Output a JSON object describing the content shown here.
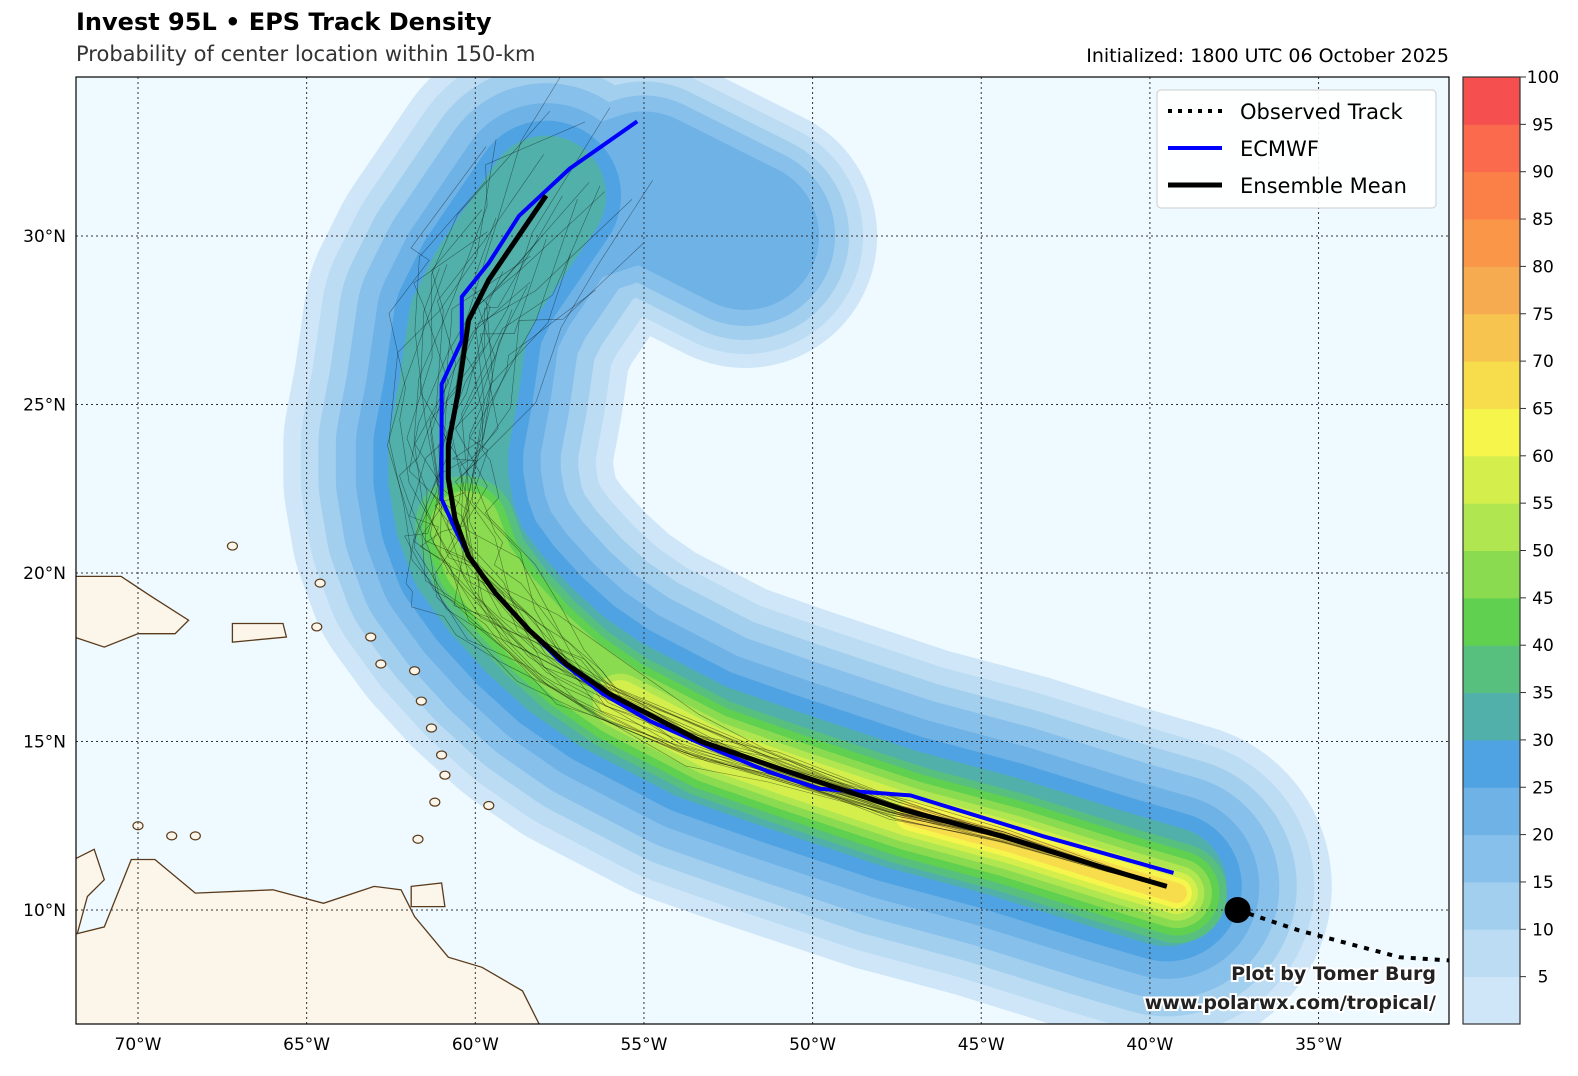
{
  "header": {
    "title": "Invest 95L • EPS Track Density",
    "subtitle": "Probability of center location within 150-km",
    "initialized": "Initialized: 1800 UTC 06 October 2025"
  },
  "legend": {
    "observed": "Observed Track",
    "ecmwf": "ECMWF",
    "mean": "Ensemble Mean"
  },
  "credit": {
    "line1": "Plot by Tomer Burg",
    "line2": "www.polarwx.com/tropical/"
  },
  "colors": {
    "ocean": "#eefaff",
    "land": "#fbf5ea",
    "coast": "#5a3a1a",
    "ecmwf": "#0000ff",
    "mean": "#000000"
  },
  "chart_data": {
    "type": "heatmap",
    "x_ticks": [
      {
        "lon": -70,
        "label": "70°W"
      },
      {
        "lon": -65,
        "label": "65°W"
      },
      {
        "lon": -60,
        "label": "60°W"
      },
      {
        "lon": -55,
        "label": "55°W"
      },
      {
        "lon": -50,
        "label": "50°W"
      },
      {
        "lon": -45,
        "label": "45°W"
      },
      {
        "lon": -40,
        "label": "40°W"
      },
      {
        "lon": -35,
        "label": "35°W"
      }
    ],
    "y_ticks": [
      {
        "lat": 30,
        "label": "30°N"
      },
      {
        "lat": 25,
        "label": "25°N"
      },
      {
        "lat": 20,
        "label": "20°N"
      },
      {
        "lat": 15,
        "label": "15°N"
      },
      {
        "lat": 10,
        "label": "10°N"
      }
    ],
    "lon_range": [
      -71.8,
      -31.1
    ],
    "lat_range": [
      6.6,
      34.7
    ],
    "grid": true,
    "legend_placement": "top-right",
    "colorbar": {
      "range": [
        0,
        100
      ],
      "ticks": [
        "5",
        "10",
        "15",
        "20",
        "25",
        "30",
        "35",
        "40",
        "45",
        "50",
        "55",
        "60",
        "65",
        "70",
        "75",
        "80",
        "85",
        "90",
        "95",
        "100"
      ],
      "colors": [
        "#cfe6f8",
        "#bbdcf3",
        "#a3cfee",
        "#88c0ec",
        "#6fb2e6",
        "#50a3e2",
        "#52b0aa",
        "#58c07e",
        "#60d050",
        "#8bdb50",
        "#b0e650",
        "#d4ef4c",
        "#f6f54c",
        "#f7dc4c",
        "#f7c450",
        "#f7ab50",
        "#f99648",
        "#fa8048",
        "#fb6a4c",
        "#f5504f"
      ]
    },
    "observed_track": [
      [
        -37.4,
        10.0
      ],
      [
        -35.6,
        9.4
      ],
      [
        -32.6,
        8.6
      ],
      [
        -31.1,
        8.5
      ]
    ],
    "ensemble_mean": [
      [
        -39.5,
        10.7
      ],
      [
        -41.2,
        11.2
      ],
      [
        -44.4,
        12.2
      ],
      [
        -47.4,
        13.0
      ],
      [
        -51.0,
        14.2
      ],
      [
        -53.3,
        15.0
      ],
      [
        -56.0,
        16.4
      ],
      [
        -57.3,
        17.3
      ],
      [
        -58.4,
        18.3
      ],
      [
        -59.4,
        19.4
      ],
      [
        -60.2,
        20.5
      ],
      [
        -60.6,
        21.6
      ],
      [
        -60.8,
        22.8
      ],
      [
        -60.8,
        23.8
      ],
      [
        -60.5,
        25.4
      ],
      [
        -60.2,
        27.5
      ],
      [
        -59.6,
        28.7
      ],
      [
        -57.9,
        31.2
      ]
    ],
    "ecmwf": [
      [
        -39.3,
        11.1
      ],
      [
        -43.2,
        12.2
      ],
      [
        -47.1,
        13.4
      ],
      [
        -49.8,
        13.6
      ],
      [
        -51.3,
        14.1
      ],
      [
        -53.0,
        14.8
      ],
      [
        -54.8,
        15.6
      ],
      [
        -56.2,
        16.4
      ],
      [
        -57.5,
        17.4
      ],
      [
        -58.4,
        18.3
      ],
      [
        -59.4,
        19.4
      ],
      [
        -60.2,
        20.5
      ],
      [
        -60.6,
        21.3
      ],
      [
        -61.0,
        22.2
      ],
      [
        -61.0,
        23.6
      ],
      [
        -61.0,
        25.6
      ],
      [
        -60.4,
        26.9
      ],
      [
        -60.4,
        28.2
      ],
      [
        -59.6,
        29.2
      ],
      [
        -58.7,
        30.6
      ],
      [
        -57.2,
        32.0
      ],
      [
        -55.2,
        33.4
      ]
    ]
  }
}
